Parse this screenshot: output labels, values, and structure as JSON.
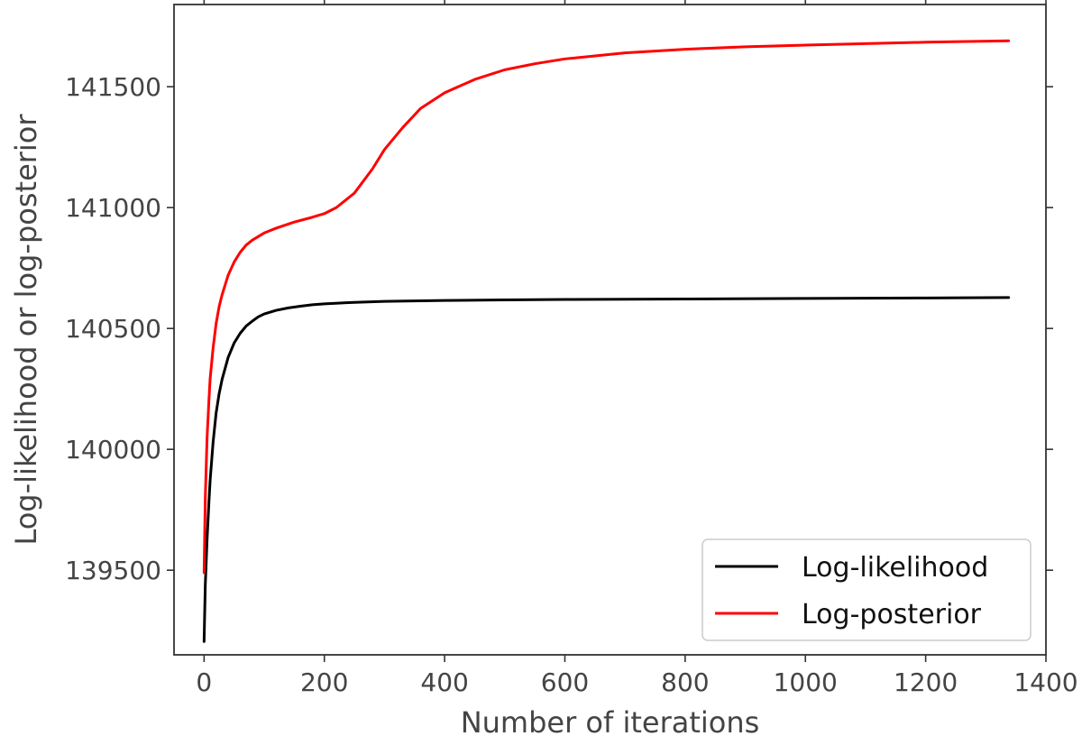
{
  "chart_data": {
    "type": "line",
    "xlabel": "Number of iterations",
    "ylabel": "Log-likelihood or log-posterior",
    "xlim": [
      -50,
      1400
    ],
    "ylim": [
      139150,
      141840
    ],
    "xticks": [
      0,
      200,
      400,
      600,
      800,
      1000,
      1200,
      1400
    ],
    "yticks": [
      139500,
      140000,
      140500,
      141000,
      141500
    ],
    "grid": false,
    "legend_position": "lower-right",
    "series": [
      {
        "name": "Log-likelihood",
        "color": "#000000",
        "x": [
          0,
          2,
          5,
          8,
          10,
          15,
          20,
          25,
          30,
          40,
          50,
          60,
          70,
          80,
          90,
          100,
          120,
          140,
          160,
          180,
          200,
          250,
          300,
          400,
          500,
          600,
          800,
          1000,
          1200,
          1338
        ],
        "y": [
          139205,
          139440,
          139630,
          139780,
          139870,
          140030,
          140150,
          140230,
          140290,
          140380,
          140440,
          140480,
          140510,
          140530,
          140548,
          140560,
          140575,
          140585,
          140592,
          140598,
          140602,
          140608,
          140612,
          140616,
          140618,
          140620,
          140622,
          140624,
          140626,
          140628
        ]
      },
      {
        "name": "Log-posterior",
        "color": "#ff0000",
        "x": [
          0,
          2,
          5,
          8,
          10,
          15,
          20,
          25,
          30,
          40,
          50,
          60,
          70,
          80,
          100,
          120,
          150,
          180,
          200,
          220,
          250,
          280,
          300,
          330,
          360,
          400,
          450,
          500,
          550,
          600,
          700,
          800,
          900,
          1000,
          1100,
          1200,
          1338
        ],
        "y": [
          139490,
          139800,
          140050,
          140200,
          140290,
          140420,
          140520,
          140590,
          140640,
          140720,
          140775,
          140815,
          140845,
          140865,
          140895,
          140915,
          140940,
          140960,
          140975,
          141000,
          141060,
          141160,
          141240,
          141330,
          141410,
          141475,
          141530,
          141570,
          141595,
          141615,
          141640,
          141655,
          141665,
          141672,
          141678,
          141684,
          141690
        ]
      }
    ]
  }
}
